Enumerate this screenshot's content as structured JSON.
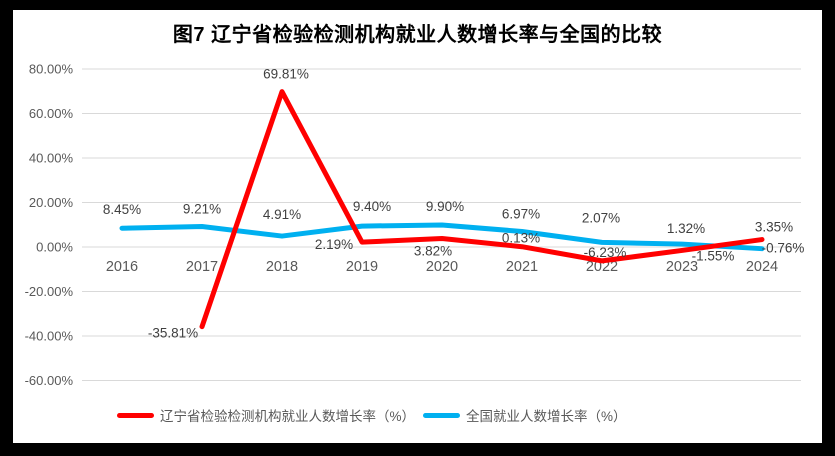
{
  "chart_data": {
    "type": "line",
    "title": "图7 辽宁省检验检测机构就业人数增长率与全国的比较",
    "categories": [
      "2016",
      "2017",
      "2018",
      "2019",
      "2020",
      "2021",
      "2022",
      "2023",
      "2024"
    ],
    "y_axis": {
      "ylim": [
        -60,
        80
      ],
      "ticks": [
        {
          "label": "80.00%",
          "value": 80
        },
        {
          "label": "60.00%",
          "value": 60
        },
        {
          "label": "40.00%",
          "value": 40
        },
        {
          "label": "20.00%",
          "value": 20
        },
        {
          "label": "0.00%",
          "value": 0
        },
        {
          "label": "-20.00%",
          "value": -20
        },
        {
          "label": "-40.00%",
          "value": -40
        },
        {
          "label": "-60.00%",
          "value": -60
        }
      ]
    },
    "grid": true,
    "legend_position": "bottom",
    "series": [
      {
        "id": "liaoning",
        "name": "辽宁省检验检测机构就业人数增长率（%）",
        "color": "#FF0000",
        "points": [
          {
            "category": "2016",
            "value": null,
            "label": ""
          },
          {
            "category": "2017",
            "value": -35.81,
            "label": "-35.81%",
            "dx": -29,
            "dy": 11
          },
          {
            "category": "2018",
            "value": 69.81,
            "label": "69.81%",
            "dx": 4,
            "dy": -13
          },
          {
            "category": "2019",
            "value": 2.19,
            "label": "2.19%",
            "dx": -28,
            "dy": 7
          },
          {
            "category": "2020",
            "value": 3.82,
            "label": "3.82%",
            "dx": -9,
            "dy": 17
          },
          {
            "category": "2021",
            "value": 0.13,
            "label": "0.13%",
            "dx": -1,
            "dy": -4
          },
          {
            "category": "2022",
            "value": -6.23,
            "label": "-6.23%",
            "dx": 3,
            "dy": -4
          },
          {
            "category": "2023",
            "value": -1.55,
            "label": "-1.55%",
            "dx": 31,
            "dy": 10
          },
          {
            "category": "2024",
            "value": 3.35,
            "label": "3.35%",
            "dx": 12,
            "dy": -8
          }
        ]
      },
      {
        "id": "national",
        "name": "全国就业人数增长率（%）",
        "color": "#00B0F0",
        "points": [
          {
            "category": "2016",
            "value": 8.45,
            "label": "8.45%",
            "dx": 0,
            "dy": -14
          },
          {
            "category": "2017",
            "value": 9.21,
            "label": "9.21%",
            "dx": 0,
            "dy": -13
          },
          {
            "category": "2018",
            "value": 4.91,
            "label": "4.91%",
            "dx": 0,
            "dy": -17
          },
          {
            "category": "2019",
            "value": 9.4,
            "label": "9.40%",
            "dx": 10,
            "dy": -15
          },
          {
            "category": "2020",
            "value": 9.9,
            "label": "9.90%",
            "dx": 3,
            "dy": -14
          },
          {
            "category": "2021",
            "value": 6.97,
            "label": "6.97%",
            "dx": -1,
            "dy": -13
          },
          {
            "category": "2022",
            "value": 2.07,
            "label": "2.07%",
            "dx": -1,
            "dy": -20
          },
          {
            "category": "2023",
            "value": 1.32,
            "label": "1.32%",
            "dx": 4,
            "dy": -11
          },
          {
            "category": "2024",
            "value": -0.76,
            "label": "-0.76%",
            "dx": 21,
            "dy": 4
          }
        ]
      }
    ],
    "colors": {
      "gridline": "#D9D9D9",
      "axis_text": "#595959",
      "label_text": "#404040",
      "title_text": "#000000",
      "frame": "#000000",
      "background": "#FFFFFF"
    }
  }
}
